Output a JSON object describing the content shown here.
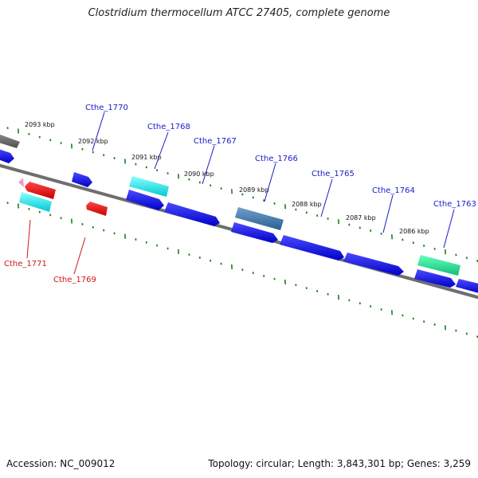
{
  "title": "Clostridium thermocellum ATCC 27405, complete genome",
  "footer": {
    "accession": "Accession: NC_009012",
    "summary": "Topology: circular; Length: 3,843,301 bp; Genes: 3,259"
  },
  "colors": {
    "backbone": "#6e6e6e",
    "forward_label": "#1a1acd",
    "reverse_label": "#d21414",
    "tick": "#1e7d1e",
    "blue_gene": "#1515e6",
    "cyan_gene": "#14e6e6",
    "red_gene": "#e60f0f",
    "steel_gene": "#4682b4",
    "green_gene": "#1ee696",
    "gray_gene": "#6e6e6e",
    "pink_gene": "#ee99cc"
  },
  "kbp_labels": [
    "2093 kbp",
    "2092 kbp",
    "2091 kbp",
    "2090 kbp",
    "2089 kbp",
    "2088 kbp",
    "2087 kbp",
    "2086 kbp"
  ],
  "forward_gene_labels": [
    "Cthe_1770",
    "Cthe_1768",
    "Cthe_1767",
    "Cthe_1766",
    "Cthe_1765",
    "Cthe_1764",
    "Cthe_1763"
  ],
  "reverse_gene_labels": [
    "Cthe_1771",
    "Cthe_1769"
  ]
}
